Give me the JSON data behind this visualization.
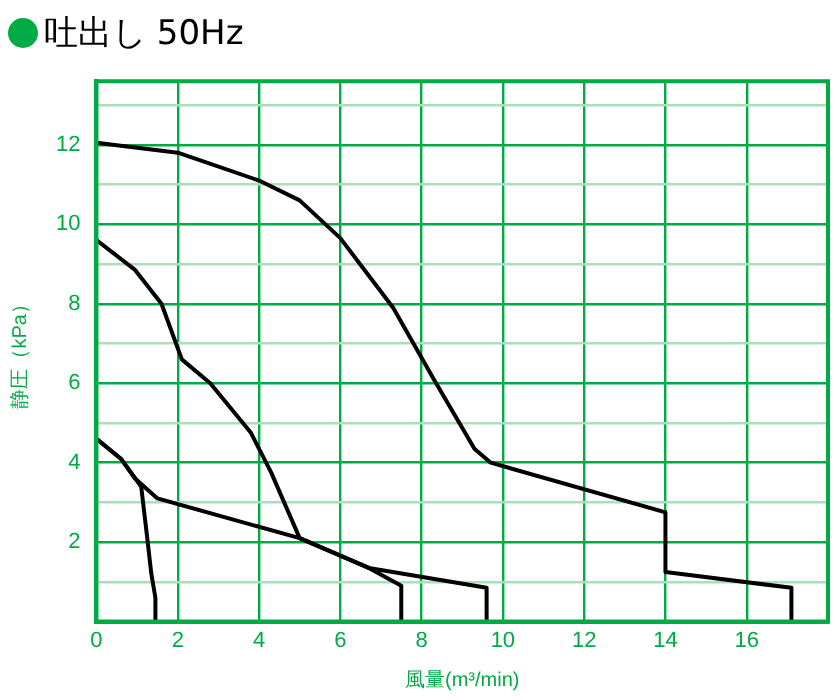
{
  "chart_data": {
    "type": "line",
    "title": "吐出し 50Hz",
    "xlabel": "風量(m³/min)",
    "ylabel": "静圧（kPa）",
    "xlim": [
      0,
      18
    ],
    "xticks": [
      0,
      2,
      4,
      6,
      8,
      10,
      12,
      14,
      16
    ],
    "ylim": [
      0,
      13.6
    ],
    "yticks": [
      {
        "value": 1,
        "label": null
      },
      2,
      {
        "value": 3,
        "label": null
      },
      4,
      {
        "value": 5,
        "label": null
      },
      6,
      {
        "value": 7,
        "label": null
      },
      8,
      {
        "value": 9,
        "label": null
      },
      10,
      {
        "value": 11,
        "label": null
      },
      12,
      {
        "value": 13,
        "label": null
      }
    ],
    "grid": true,
    "legend": false,
    "marker": "none",
    "line_style": "solid",
    "series": [
      {
        "color": "#000000",
        "x": [
          0,
          0.6,
          1.1,
          1.25,
          1.35,
          1.45,
          1.45
        ],
        "values": [
          4.6,
          4.1,
          3.4,
          2.1,
          1.2,
          0.6,
          0
        ]
      },
      {
        "color": "#000000",
        "x": [
          0,
          0.6,
          0.95,
          1.5,
          5,
          6.7,
          7.5,
          7.5
        ],
        "values": [
          4.6,
          4.1,
          3.6,
          3.1,
          2.1,
          1.35,
          0.9,
          0
        ]
      },
      {
        "color": "#000000",
        "x": [
          0,
          0.95,
          1.6,
          2.1,
          2.8,
          3.8,
          4.3,
          5,
          6.7,
          9.6,
          9.6
        ],
        "values": [
          9.6,
          8.85,
          8,
          6.6,
          6,
          4.75,
          3.75,
          2.1,
          1.35,
          0.85,
          0
        ]
      },
      {
        "color": "#000000",
        "x": [
          0,
          2,
          4,
          5,
          6,
          7.3,
          8.3,
          9.3,
          9.7,
          14,
          14,
          17.1,
          17.1
        ],
        "values": [
          12.05,
          11.8,
          11.1,
          10.6,
          9.65,
          7.9,
          6.1,
          4.35,
          4,
          2.75,
          1.25,
          0.85,
          0
        ]
      }
    ]
  }
}
